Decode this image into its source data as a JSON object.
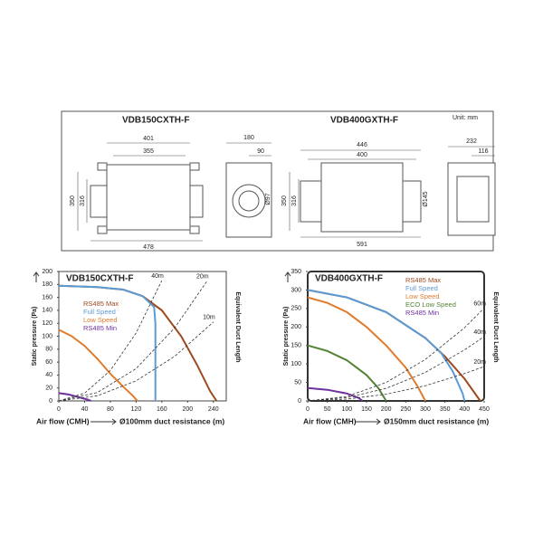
{
  "drawing": {
    "titles": [
      "VDB150CXTH-F",
      "VDB400GXTH-F"
    ],
    "unit": "Unit: mm",
    "dimensions": [
      "401",
      "355",
      "478",
      "350",
      "316",
      "180",
      "90",
      "Ø97",
      "446",
      "400",
      "591",
      "350",
      "316",
      "Ø145",
      "232",
      "116"
    ]
  },
  "chart_data": [
    {
      "type": "line",
      "title": "VDB150CXTH-F",
      "ylabel": "Static pressure (Pa)",
      "xlabel": "Air flow (CMH)",
      "secondary_xlabel": "Ø100mm duct resistance (m)",
      "right_label": "Equivalent Duct Length",
      "xlim": [
        0,
        260
      ],
      "ylim": [
        0,
        200
      ],
      "xticks": [
        0,
        40,
        80,
        120,
        160,
        200,
        240
      ],
      "yticks": [
        0,
        20,
        40,
        60,
        80,
        100,
        120,
        140,
        160,
        180,
        200
      ],
      "series": [
        {
          "name": "RS485 Max",
          "color": "#9c4a1e",
          "x": [
            0,
            60,
            100,
            130,
            160,
            190,
            215,
            235,
            245
          ],
          "values": [
            178,
            176,
            172,
            162,
            140,
            100,
            55,
            15,
            0
          ]
        },
        {
          "name": "Full Speed",
          "color": "#5b9bd5",
          "x": [
            0,
            60,
            100,
            130,
            148,
            150,
            150
          ],
          "values": [
            178,
            176,
            172,
            162,
            145,
            120,
            0
          ]
        },
        {
          "name": "Low Speed",
          "color": "#e07b2c",
          "x": [
            0,
            20,
            40,
            60,
            80,
            100,
            115,
            122
          ],
          "values": [
            110,
            100,
            85,
            65,
            42,
            22,
            8,
            0
          ]
        },
        {
          "name": "RS485 Min",
          "color": "#7030a0",
          "x": [
            0,
            15,
            30,
            45,
            50
          ],
          "values": [
            12,
            10,
            6,
            2,
            0
          ]
        },
        {
          "name": "40m",
          "color": "#333333",
          "dashed": true,
          "x": [
            0,
            40,
            80,
            120,
            160
          ],
          "values": [
            0,
            12,
            47,
            105,
            186
          ]
        },
        {
          "name": "20m",
          "color": "#333333",
          "dashed": true,
          "x": [
            0,
            60,
            120,
            180,
            230
          ],
          "values": [
            0,
            13,
            50,
            113,
            185
          ]
        },
        {
          "name": "10m",
          "color": "#333333",
          "dashed": true,
          "x": [
            0,
            60,
            120,
            180,
            240
          ],
          "values": [
            0,
            8,
            31,
            69,
            122
          ]
        }
      ]
    },
    {
      "type": "line",
      "title": "VDB400GXTH-F",
      "ylabel": "Static pressure (Pa)",
      "xlabel": "Air flow (CMH)",
      "secondary_xlabel": "Ø150mm duct resistance (m)",
      "right_label": "Equivalent Duct Length",
      "xlim": [
        0,
        450
      ],
      "ylim": [
        0,
        350
      ],
      "xticks": [
        0,
        50,
        100,
        150,
        200,
        250,
        300,
        350,
        400,
        450
      ],
      "yticks": [
        0,
        50,
        100,
        150,
        200,
        250,
        300,
        350
      ],
      "series": [
        {
          "name": "RS485 Max",
          "color": "#9c4a1e",
          "x": [
            0,
            100,
            200,
            300,
            350,
            400,
            440
          ],
          "values": [
            300,
            280,
            240,
            170,
            120,
            60,
            0
          ]
        },
        {
          "name": "Full Speed",
          "color": "#5b9bd5",
          "x": [
            0,
            100,
            200,
            300,
            340,
            370,
            395,
            400
          ],
          "values": [
            300,
            280,
            240,
            170,
            130,
            80,
            20,
            0
          ]
        },
        {
          "name": "Low Speed",
          "color": "#e07b2c",
          "x": [
            0,
            50,
            100,
            150,
            200,
            250,
            280,
            300
          ],
          "values": [
            280,
            265,
            240,
            200,
            150,
            90,
            40,
            0
          ]
        },
        {
          "name": "ECO Low Speed",
          "color": "#548235",
          "x": [
            0,
            50,
            100,
            150,
            180,
            200
          ],
          "values": [
            150,
            135,
            110,
            70,
            35,
            0
          ]
        },
        {
          "name": "RS485 Min",
          "color": "#7030a0",
          "x": [
            0,
            50,
            100,
            130,
            140
          ],
          "values": [
            35,
            30,
            20,
            8,
            0
          ]
        },
        {
          "name": "60m",
          "color": "#333333",
          "dashed": true,
          "x": [
            0,
            100,
            200,
            300,
            400,
            450
          ],
          "values": [
            0,
            12,
            50,
            112,
            198,
            251
          ]
        },
        {
          "name": "40m",
          "color": "#333333",
          "dashed": true,
          "x": [
            0,
            100,
            200,
            300,
            400,
            450
          ],
          "values": [
            0,
            9,
            34,
            77,
            138,
            174
          ]
        },
        {
          "name": "20m",
          "color": "#333333",
          "dashed": true,
          "x": [
            0,
            100,
            200,
            300,
            400,
            450
          ],
          "values": [
            0,
            5,
            18,
            41,
            74,
            93
          ]
        }
      ]
    }
  ]
}
